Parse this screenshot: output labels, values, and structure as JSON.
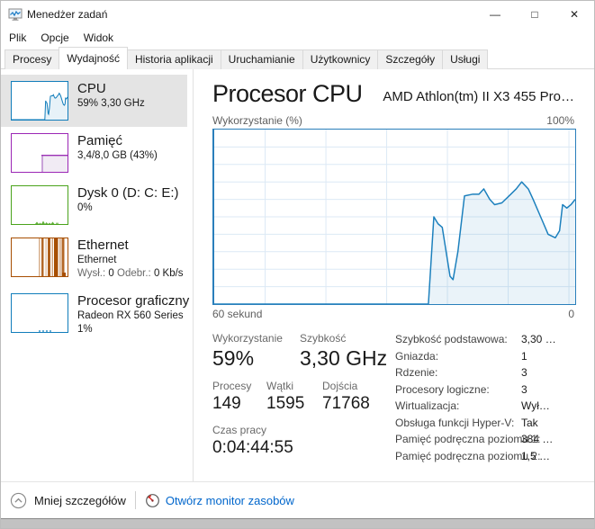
{
  "window": {
    "title": "Menedżer zadań",
    "minimize_icon": "—",
    "maximize_icon": "□",
    "close_icon": "✕"
  },
  "menu": [
    "Plik",
    "Opcje",
    "Widok"
  ],
  "tabs": [
    "Procesy",
    "Wydajność",
    "Historia aplikacji",
    "Uruchamianie",
    "Użytkownicy",
    "Szczegóły",
    "Usługi"
  ],
  "active_tab": "Wydajność",
  "sidebar": {
    "items": [
      {
        "id": "cpu",
        "title": "CPU",
        "line2": "59% 3,30 GHz"
      },
      {
        "id": "memory",
        "title": "Pamięć",
        "line2": "3,4/8,0 GB (43%)"
      },
      {
        "id": "disk",
        "title": "Dysk 0 (D: C: E:)",
        "line2": "0%"
      },
      {
        "id": "ethernet",
        "title": "Ethernet",
        "line2": "Ethernet",
        "line3": {
          "sent_label": "Wysł.:",
          "sent_value": "0",
          "recv_label": "Odebr.:",
          "recv_value": "0 Kb/s"
        }
      },
      {
        "id": "gpu",
        "title": "Procesor graficzny",
        "line2": "Radeon RX 560 Series",
        "line3": "1%"
      }
    ]
  },
  "main": {
    "page_title": "Procesor CPU",
    "cpu_name": "AMD Athlon(tm) II X3 455 Pro…",
    "chart_top_left": "Wykorzystanie (%)",
    "chart_top_right": "100%",
    "chart_bottom_left": "60 sekund",
    "chart_bottom_right": "0",
    "stats": {
      "utilization_label": "Wykorzystanie",
      "utilization_value": "59%",
      "speed_label": "Szybkość",
      "speed_value": "3,30 GHz",
      "processes_label": "Procesy",
      "processes_value": "149",
      "threads_label": "Wątki",
      "threads_value": "1595",
      "handles_label": "Dojścia",
      "handles_value": "71768",
      "uptime_label": "Czas pracy",
      "uptime_value": "0:04:44:55"
    },
    "details": [
      {
        "label": "Szybkość podstawowa:",
        "value": "3,30 …"
      },
      {
        "label": "Gniazda:",
        "value": "1"
      },
      {
        "label": "Rdzenie:",
        "value": "3"
      },
      {
        "label": "Procesory logiczne:",
        "value": "3"
      },
      {
        "label": "Wirtualizacja:",
        "value": "Wył…"
      },
      {
        "label": "Obsługa funkcji Hyper-V:",
        "value": "Tak"
      },
      {
        "label": "Pamięć podręczna poziomu 1:",
        "value": "384 …"
      },
      {
        "label": "Pamięć podręczna poziomu 2:",
        "value": "1,5 …"
      }
    ]
  },
  "footer": {
    "less_details": "Mniej szczegółów",
    "open_resource_monitor": "Otwórz monitor zasobów"
  },
  "colors": {
    "cpu_accent": "#117dbb",
    "memory_accent": "#9b26b5",
    "disk_accent": "#4aa31c",
    "ethernet_accent": "#a74e01",
    "link": "#0066cc",
    "selected_bg": "#e4e4e4"
  },
  "chart_data": {
    "type": "area",
    "title": "Wykorzystanie (%)",
    "xlabel": "60 sekund → 0",
    "ylabel": "%",
    "x_domain_seconds": [
      60,
      0
    ],
    "ylim": [
      0,
      100
    ],
    "grid": true,
    "points_seconds_ago_vs_percent": [
      [
        60,
        0
      ],
      [
        45,
        0
      ],
      [
        35,
        0
      ],
      [
        30,
        0
      ],
      [
        27,
        0
      ],
      [
        24.4,
        0
      ],
      [
        23.5,
        50
      ],
      [
        22.8,
        46
      ],
      [
        22.1,
        44
      ],
      [
        20.8,
        16
      ],
      [
        20.3,
        14
      ],
      [
        19.5,
        30
      ],
      [
        18.4,
        62
      ],
      [
        17.0,
        63
      ],
      [
        16.0,
        63
      ],
      [
        15.2,
        66
      ],
      [
        14.2,
        60
      ],
      [
        13.4,
        57
      ],
      [
        12.2,
        58
      ],
      [
        10.7,
        63
      ],
      [
        9.8,
        66
      ],
      [
        8.9,
        70
      ],
      [
        7.8,
        66
      ],
      [
        7.0,
        60
      ],
      [
        5.5,
        48
      ],
      [
        4.5,
        40
      ],
      [
        3.3,
        38
      ],
      [
        2.6,
        42
      ],
      [
        2.1,
        57
      ],
      [
        1.4,
        55
      ],
      [
        0.7,
        57
      ],
      [
        0,
        60
      ]
    ]
  }
}
